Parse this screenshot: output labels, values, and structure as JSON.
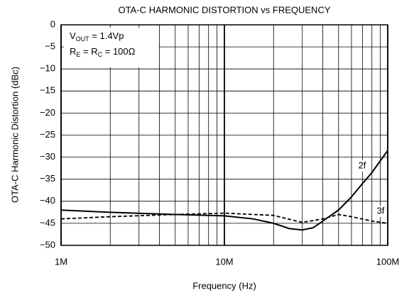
{
  "chart_data": {
    "type": "line",
    "title": "OTA-C HARMONIC DISTORTION vs FREQUENCY",
    "x_label": "Frequency (Hz)",
    "y_label": "OTA-C Harmonic Distortion (dBc)",
    "xscale": "log",
    "xlim": [
      1000000,
      100000000
    ],
    "xticks": [
      {
        "value": 1000000,
        "label": "1M"
      },
      {
        "value": 10000000,
        "label": "10M"
      },
      {
        "value": 100000000,
        "label": "100M"
      }
    ],
    "xminorticks": [
      2000000,
      3000000,
      4000000,
      5000000,
      6000000,
      7000000,
      8000000,
      9000000,
      20000000,
      30000000,
      40000000,
      50000000,
      60000000,
      70000000,
      80000000,
      90000000
    ],
    "ylim": [
      -50,
      0
    ],
    "yticks": [
      0,
      {
        "value": -5,
        "label": "−5"
      },
      {
        "value": -10,
        "label": "−10"
      },
      {
        "value": -15,
        "label": "−15"
      },
      {
        "value": -20,
        "label": "−20"
      },
      {
        "value": -25,
        "label": "−25"
      },
      {
        "value": -30,
        "label": "−30"
      },
      {
        "value": -35,
        "label": "−35"
      },
      {
        "value": -40,
        "label": "−40"
      },
      {
        "value": -45,
        "label": "−45"
      },
      {
        "value": -50,
        "label": "−50"
      }
    ],
    "grid": true,
    "annotations": [
      {
        "parts": [
          "V",
          "OUT",
          " = 1.4Vp"
        ]
      },
      {
        "parts": [
          "R",
          "E",
          " = R",
          "C",
          " = 100Ω"
        ]
      }
    ],
    "series": [
      {
        "name": "2f",
        "color": "#000000",
        "dash": false,
        "x": [
          1000000,
          2000000,
          5000000,
          10000000,
          15000000,
          20000000,
          25000000,
          30000000,
          35000000,
          40000000,
          50000000,
          60000000,
          70000000,
          80000000,
          100000000
        ],
        "values": [
          -42,
          -42.5,
          -43,
          -43.3,
          -44,
          -45,
          -46.2,
          -46.5,
          -46,
          -44.5,
          -42,
          -39,
          -36,
          -33.5,
          -28.5
        ]
      },
      {
        "name": "3f",
        "color": "#000000",
        "dash": true,
        "x": [
          1000000,
          2000000,
          5000000,
          10000000,
          20000000,
          30000000,
          40000000,
          50000000,
          60000000,
          80000000,
          100000000
        ],
        "values": [
          -44,
          -43.5,
          -43,
          -42.7,
          -43.2,
          -44.8,
          -44,
          -43,
          -43.5,
          -44.5,
          -45
        ]
      }
    ]
  }
}
